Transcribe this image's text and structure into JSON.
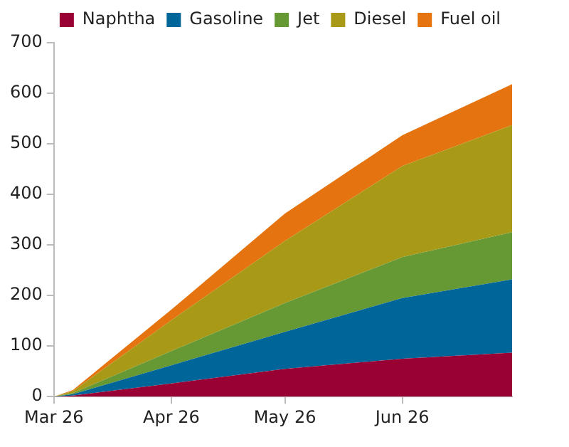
{
  "chart_data": {
    "type": "area",
    "stacked": true,
    "legend": "top",
    "grid": false,
    "x": [
      "--03-26",
      "--03-31",
      "--04-26",
      "--05-26",
      "--06-26",
      "--07-25"
    ],
    "xlim": [
      "--03-26",
      "--07-25"
    ],
    "xticks": [
      {
        "value": "--03-26",
        "label": "Mar 26"
      },
      {
        "value": "--04-26",
        "label": "Apr 26"
      },
      {
        "value": "--05-26",
        "label": "May 26"
      },
      {
        "value": "--06-26",
        "label": "Jun 26"
      }
    ],
    "ylim": [
      0,
      700
    ],
    "yticks": [
      0,
      100,
      200,
      300,
      400,
      500,
      600,
      700
    ],
    "series": [
      {
        "name": "Naphtha",
        "color": "#990033",
        "values": [
          0,
          2,
          26,
          55,
          75,
          87
        ]
      },
      {
        "name": "Gasoline",
        "color": "#006699",
        "values": [
          0,
          3,
          36,
          73,
          120,
          145
        ]
      },
      {
        "name": "Jet",
        "color": "#669933",
        "values": [
          0,
          2,
          28,
          57,
          81,
          93
        ]
      },
      {
        "name": "Diesel",
        "color": "#a89a16",
        "values": [
          0,
          4,
          61,
          123,
          180,
          212
        ]
      },
      {
        "name": "Fuel oil",
        "color": "#e57410",
        "values": [
          0,
          2,
          21,
          54,
          61,
          81
        ]
      }
    ]
  }
}
